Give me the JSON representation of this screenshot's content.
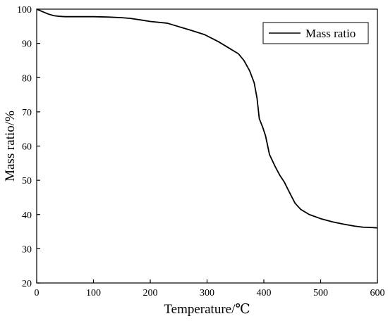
{
  "chart_data": {
    "type": "line",
    "xlabel": "Temperature/℃",
    "ylabel": "Mass ratio/%",
    "xlim": [
      0,
      600
    ],
    "ylim": [
      20,
      100
    ],
    "xticks": [
      0,
      100,
      200,
      300,
      400,
      500,
      600
    ],
    "yticks": [
      20,
      30,
      40,
      50,
      60,
      70,
      80,
      90,
      100
    ],
    "grid": false,
    "legend_position": "top-right",
    "series": [
      {
        "name": "Mass ratio",
        "color": "#000000",
        "x": [
          0,
          10,
          20,
          30,
          40,
          50,
          75,
          100,
          125,
          150,
          165,
          185,
          200,
          230,
          250,
          270,
          295,
          320,
          340,
          355,
          365,
          375,
          383,
          388,
          392,
          398,
          403,
          410,
          420,
          428,
          436,
          445,
          455,
          465,
          480,
          500,
          520,
          540,
          560,
          575,
          590,
          600
        ],
        "y": [
          100,
          99.3,
          98.6,
          98.1,
          97.9,
          97.8,
          97.8,
          97.8,
          97.7,
          97.5,
          97.3,
          96.8,
          96.4,
          95.9,
          94.9,
          93.9,
          92.6,
          90.5,
          88.5,
          87.0,
          85.0,
          82.0,
          78.5,
          74.0,
          68.0,
          65.5,
          63.0,
          57.5,
          54.0,
          51.5,
          49.5,
          46.5,
          43.3,
          41.5,
          40.0,
          38.8,
          37.9,
          37.2,
          36.6,
          36.3,
          36.2,
          36.1
        ]
      }
    ]
  }
}
